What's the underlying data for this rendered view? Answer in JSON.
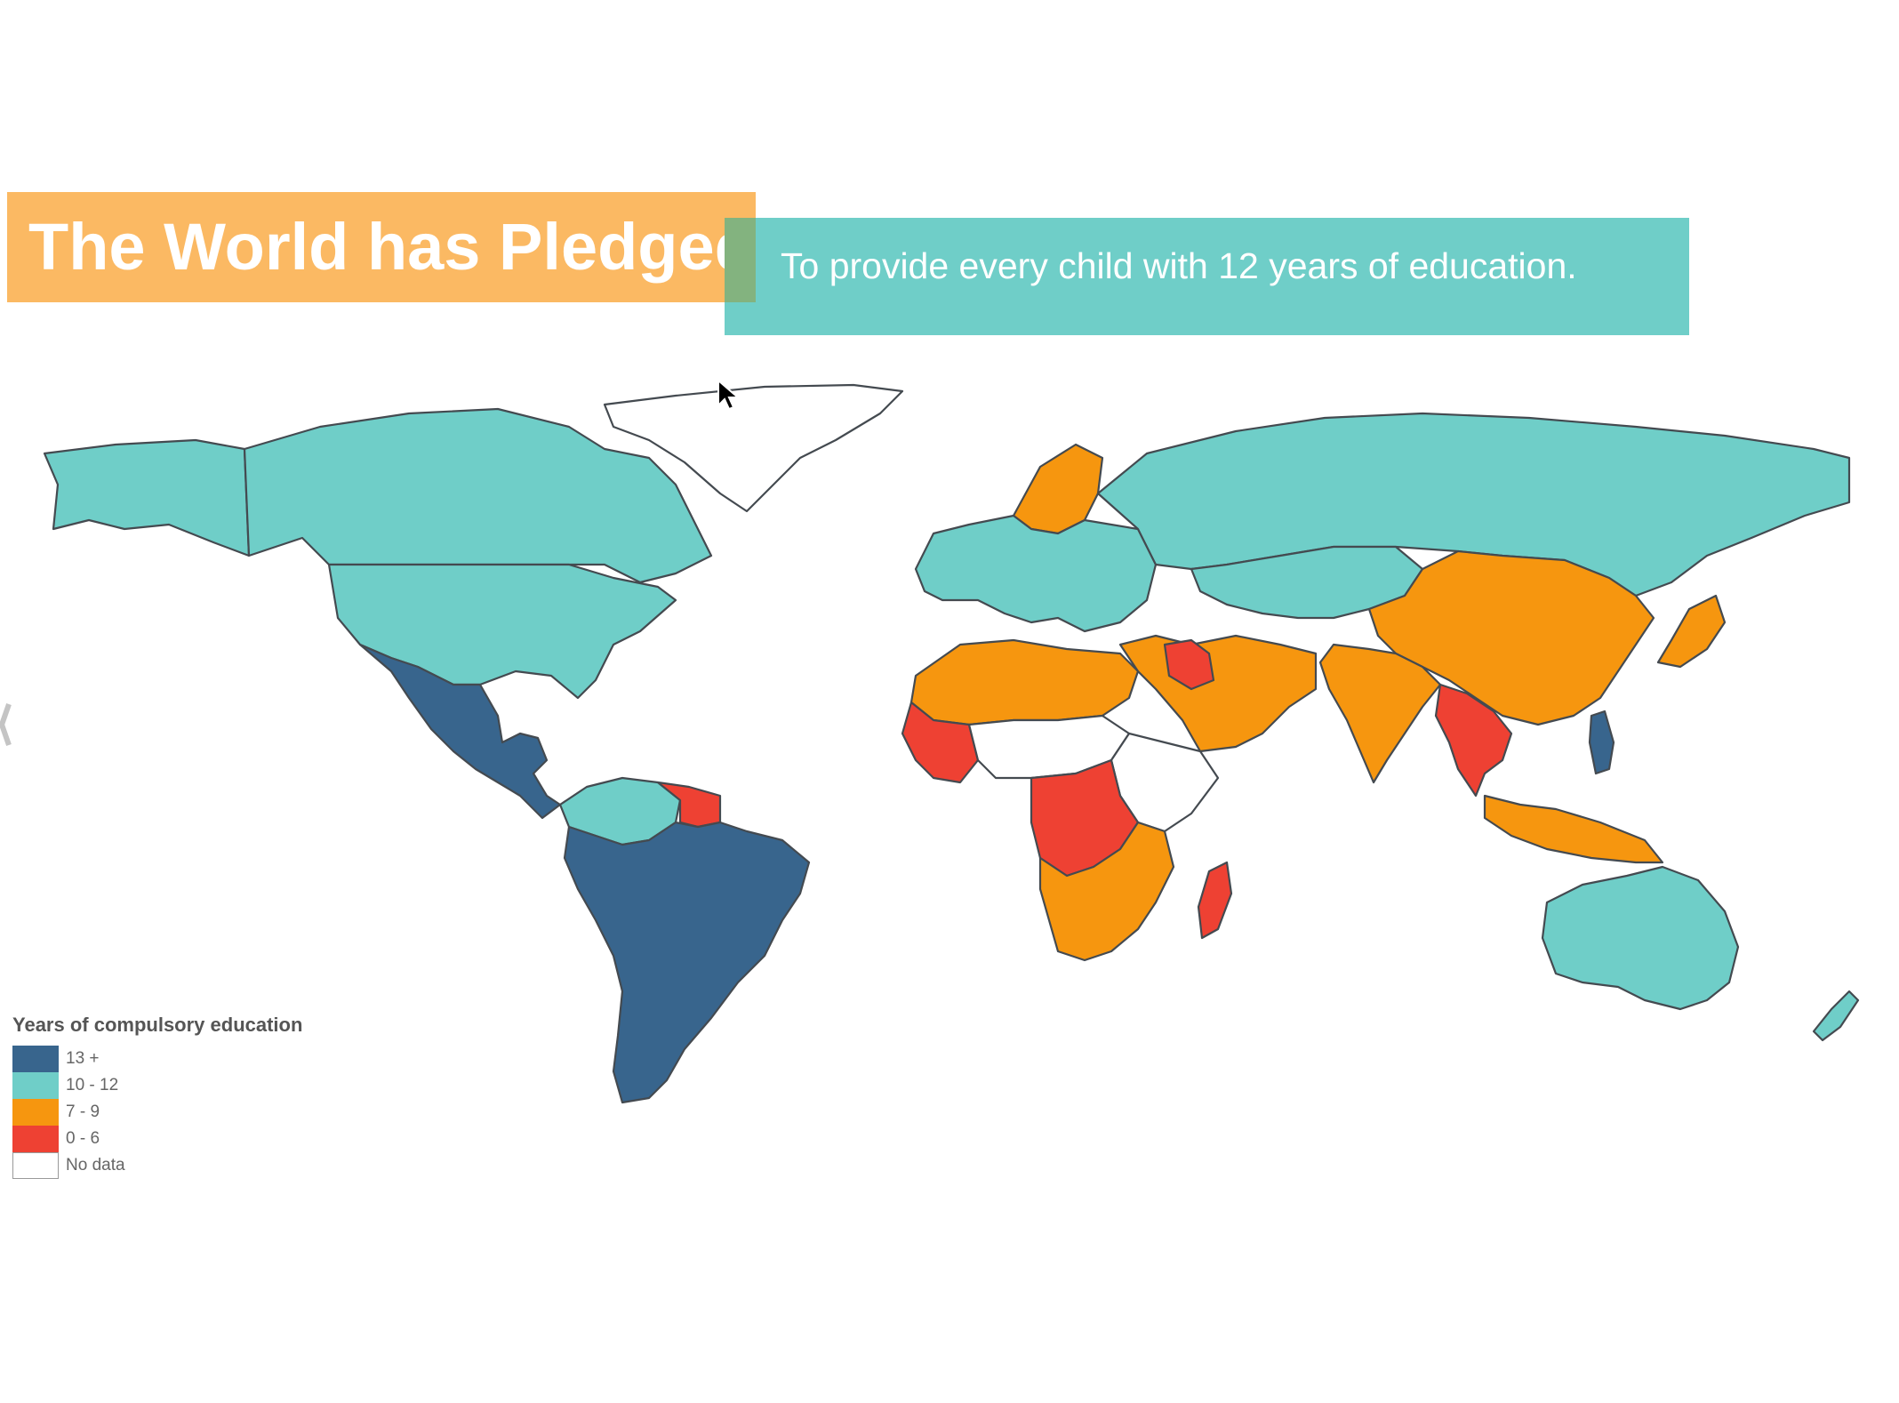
{
  "header": {
    "title": "The World has Pledged",
    "subtitle": "To provide every child with 12 years of  education."
  },
  "legend": {
    "title": "Years of compulsory education",
    "items": [
      {
        "label": "13 +",
        "color": "#38658d"
      },
      {
        "label": "10 - 12",
        "color": "#6fcec8"
      },
      {
        "label": "7 - 9",
        "color": "#f6960f"
      },
      {
        "label": "0 - 6",
        "color": "#ee4133"
      },
      {
        "label": "No data",
        "color": "#ffffff"
      }
    ]
  },
  "map": {
    "border_color": "#444a50",
    "regions": [
      {
        "name": "alaska",
        "category": "10 - 12"
      },
      {
        "name": "canada",
        "category": "10 - 12"
      },
      {
        "name": "usa",
        "category": "10 - 12"
      },
      {
        "name": "greenland",
        "category": "No data"
      },
      {
        "name": "mexico-central-america",
        "category": "13 +"
      },
      {
        "name": "colombia-venezuela",
        "category": "10 - 12"
      },
      {
        "name": "guianas",
        "category": "0 - 6"
      },
      {
        "name": "south-america",
        "category": "13 +"
      },
      {
        "name": "scandinavia",
        "category": "7 - 9"
      },
      {
        "name": "europe",
        "category": "10 - 12"
      },
      {
        "name": "russia",
        "category": "10 - 12"
      },
      {
        "name": "central-asia",
        "category": "10 - 12"
      },
      {
        "name": "middle-east",
        "category": "7 - 9"
      },
      {
        "name": "iraq",
        "category": "0 - 6"
      },
      {
        "name": "china",
        "category": "7 - 9"
      },
      {
        "name": "india",
        "category": "7 - 9"
      },
      {
        "name": "southeast-asia",
        "category": "0 - 6"
      },
      {
        "name": "japan",
        "category": "7 - 9"
      },
      {
        "name": "north-africa",
        "category": "7 - 9"
      },
      {
        "name": "west-africa",
        "category": "0 - 6"
      },
      {
        "name": "sahel",
        "category": "No data"
      },
      {
        "name": "east-africa",
        "category": "No data"
      },
      {
        "name": "central-africa",
        "category": "0 - 6"
      },
      {
        "name": "southern-africa",
        "category": "7 - 9"
      },
      {
        "name": "madagascar",
        "category": "0 - 6"
      },
      {
        "name": "indonesia",
        "category": "7 - 9"
      },
      {
        "name": "philippines",
        "category": "13 +"
      },
      {
        "name": "australia",
        "category": "10 - 12"
      },
      {
        "name": "new-zealand",
        "category": "10 - 12"
      }
    ]
  }
}
